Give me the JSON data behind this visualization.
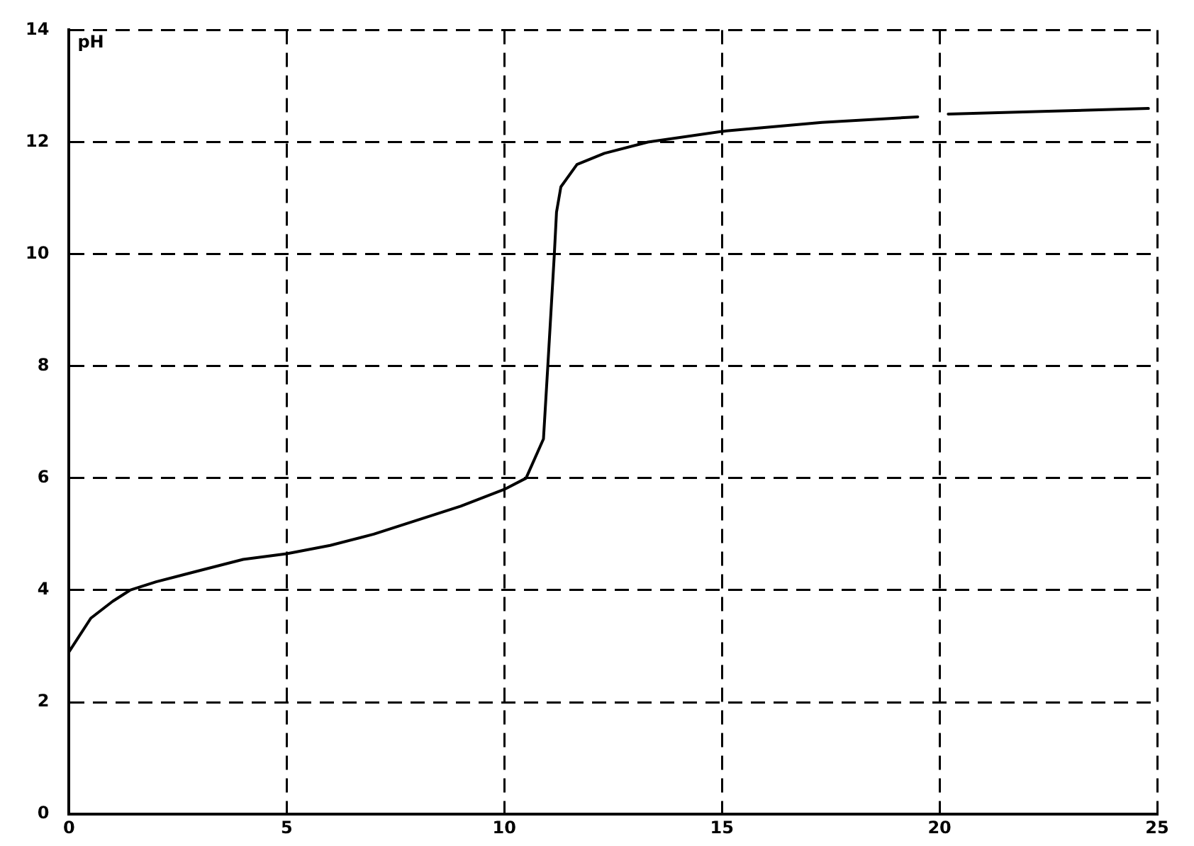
{
  "chart_data": {
    "type": "line",
    "ylabel": "pH",
    "x": [
      0,
      0.5,
      1,
      1.4,
      2,
      3,
      4,
      5,
      6,
      7,
      8,
      9,
      10,
      10.5,
      10.9,
      11.0,
      11.15,
      11.2,
      11.3,
      11.67,
      12.3,
      13.3,
      15.1,
      17.3,
      19.5,
      19.8,
      20.2,
      22.5,
      24.8
    ],
    "series": [
      {
        "color": "#000000",
        "values": [
          2.9,
          3.5,
          3.8,
          4.0,
          4.15,
          4.35,
          4.55,
          4.65,
          4.8,
          5.0,
          5.25,
          5.5,
          5.8,
          6.0,
          6.7,
          8.0,
          10.0,
          10.75,
          11.2,
          11.6,
          11.8,
          12.0,
          12.2,
          12.35,
          12.45,
          null,
          12.5,
          12.55,
          12.6
        ]
      }
    ],
    "xlim": [
      0,
      25
    ],
    "xticks": [
      0,
      5,
      10,
      15,
      20,
      25
    ],
    "ylim": [
      0,
      14
    ],
    "yticks": [
      0,
      2,
      4,
      6,
      8,
      10,
      12,
      14
    ],
    "grid": true,
    "legend": false,
    "marker": "none",
    "line_style": "solid"
  }
}
